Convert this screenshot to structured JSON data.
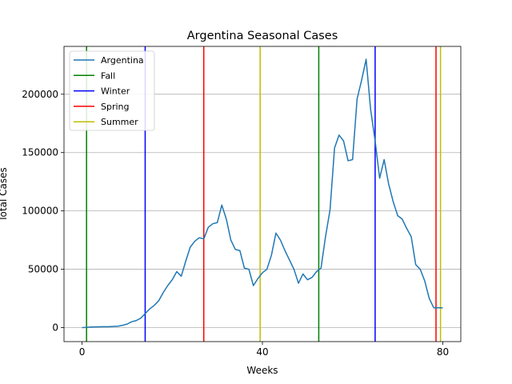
{
  "chart_data": {
    "type": "line",
    "title": "Argentina Seasonal Cases",
    "xlabel": "Weeks",
    "ylabel": "Total Cases",
    "xlim": [
      -4,
      84
    ],
    "ylim": [
      -12000,
      241000
    ],
    "xticks": [
      0,
      40,
      80
    ],
    "xtick_labels": [
      "0",
      "40",
      "80"
    ],
    "yticks": [
      0,
      50000,
      100000,
      150000,
      200000
    ],
    "ytick_labels": [
      "0",
      "50000",
      "100000",
      "150000",
      "200000"
    ],
    "grid": "y",
    "legend_position": "top-left",
    "series": [
      {
        "name": "Argentina",
        "color": "#1f77b4",
        "x": [
          0,
          1,
          2,
          3,
          4,
          5,
          6,
          7,
          8,
          9,
          10,
          11,
          12,
          13,
          14,
          15,
          16,
          17,
          18,
          19,
          20,
          21,
          22,
          23,
          24,
          25,
          26,
          27,
          28,
          29,
          30,
          31,
          32,
          33,
          34,
          35,
          36,
          37,
          38,
          39,
          40,
          41,
          42,
          43,
          44,
          45,
          46,
          47,
          48,
          49,
          50,
          51,
          52,
          53,
          54,
          55,
          56,
          57,
          58,
          59,
          60,
          61,
          62,
          63,
          64,
          65,
          66,
          67,
          68,
          69,
          70,
          71,
          72,
          73,
          74,
          75,
          76,
          77,
          78,
          79,
          80
        ],
        "y": [
          0,
          200,
          500,
          600,
          700,
          800,
          800,
          1000,
          1200,
          2000,
          3000,
          5000,
          6000,
          8000,
          12000,
          16000,
          19000,
          23000,
          30000,
          36000,
          41000,
          48000,
          44000,
          57000,
          69000,
          74000,
          77000,
          76000,
          86000,
          89000,
          90000,
          105000,
          93000,
          75000,
          67000,
          66000,
          51000,
          50000,
          36000,
          42000,
          47000,
          50000,
          62000,
          81000,
          75000,
          66000,
          58000,
          50000,
          38000,
          46000,
          41000,
          43000,
          48000,
          51000,
          78000,
          101000,
          154000,
          165000,
          160000,
          143000,
          144000,
          196000,
          212000,
          230000,
          187000,
          160000,
          128000,
          144000,
          123000,
          108000,
          96000,
          93000,
          85000,
          78000,
          54000,
          50000,
          40000,
          25000,
          17000,
          17000,
          17000
        ]
      }
    ],
    "season_lines": [
      {
        "name": "Fall",
        "color": "#008000",
        "x": [
          1,
          52.5
        ]
      },
      {
        "name": "Winter",
        "color": "#0000ff",
        "x": [
          14,
          65
        ]
      },
      {
        "name": "Spring",
        "color": "#ff0000",
        "x": [
          27,
          78.5
        ]
      },
      {
        "name": "Summer",
        "color": "#bfbf00",
        "x": [
          39.5,
          79.5
        ]
      }
    ],
    "legend": [
      "Argentina",
      "Fall",
      "Winter",
      "Spring",
      "Summer"
    ]
  }
}
